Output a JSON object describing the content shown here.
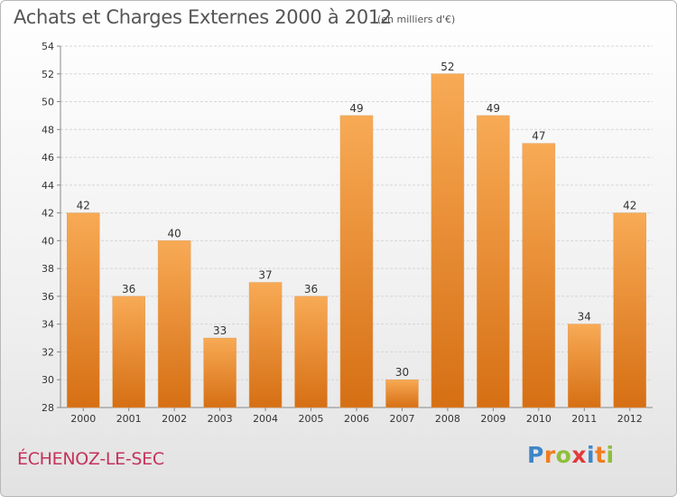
{
  "title": "Achats et Charges Externes 2000 à 2012",
  "unit_note": "(en milliers d'€)",
  "commune": "ÉCHENOZ-LE-SEC",
  "brand": {
    "letters": [
      "P",
      "r",
      "o",
      "x",
      "i",
      "t",
      "i"
    ],
    "colors": [
      "#3f86c8",
      "#ef7d22",
      "#8fbf3a",
      "#e23a3a",
      "#3f86c8",
      "#ef7d22",
      "#8fbf3a"
    ]
  },
  "colors": {
    "bar_top": "#f8aa55",
    "bar_bottom": "#d66f14",
    "commune_text": "#c4325b"
  },
  "chart_data": {
    "type": "bar",
    "categories": [
      "2000",
      "2001",
      "2002",
      "2003",
      "2004",
      "2005",
      "2006",
      "2007",
      "2008",
      "2009",
      "2010",
      "2011",
      "2012"
    ],
    "values": [
      42,
      36,
      40,
      33,
      37,
      36,
      49,
      30,
      52,
      49,
      47,
      34,
      42
    ],
    "ylim": [
      28,
      54
    ],
    "yticks": [
      28,
      30,
      32,
      34,
      36,
      38,
      40,
      42,
      44,
      46,
      48,
      50,
      52,
      54
    ],
    "grid": true
  }
}
